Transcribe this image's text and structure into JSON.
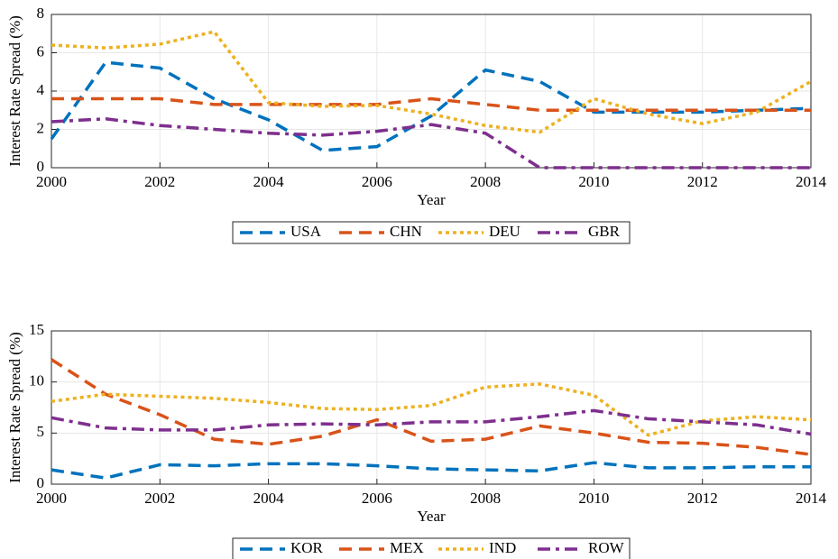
{
  "chart_data": [
    {
      "type": "line",
      "xlabel": "Year",
      "ylabel": "Interest Rate Spread (%)",
      "x": [
        2000,
        2001,
        2002,
        2003,
        2004,
        2005,
        2006,
        2007,
        2008,
        2009,
        2010,
        2011,
        2012,
        2013,
        2014
      ],
      "xlim": [
        2000,
        2014
      ],
      "xticks": [
        2000,
        2002,
        2004,
        2006,
        2008,
        2010,
        2012,
        2014
      ],
      "ylim": [
        0,
        8
      ],
      "yticks": [
        0,
        2,
        4,
        6,
        8
      ],
      "grid": true,
      "legend": "bottom",
      "series": [
        {
          "name": "USA",
          "color": "#0072BD",
          "style": "dashed",
          "values": [
            1.5,
            5.5,
            5.2,
            3.6,
            2.5,
            0.9,
            1.1,
            2.7,
            5.1,
            4.5,
            2.9,
            2.9,
            2.9,
            3.0,
            3.1
          ]
        },
        {
          "name": "CHN",
          "color": "#D95319",
          "style": "dashed",
          "values": [
            3.6,
            3.6,
            3.6,
            3.3,
            3.3,
            3.3,
            3.3,
            3.6,
            3.3,
            3.0,
            3.0,
            3.0,
            3.0,
            3.0,
            3.0
          ]
        },
        {
          "name": "DEU",
          "color": "#EDB120",
          "style": "dotted",
          "values": [
            6.4,
            6.25,
            6.45,
            7.1,
            3.4,
            3.2,
            3.25,
            2.8,
            2.2,
            1.85,
            3.6,
            2.8,
            2.3,
            2.9,
            4.5
          ]
        },
        {
          "name": "GBR",
          "color": "#7E2F8E",
          "style": "dashdot",
          "values": [
            2.4,
            2.55,
            2.2,
            2.0,
            1.8,
            1.7,
            1.9,
            2.25,
            1.8,
            0,
            0,
            0,
            0,
            0,
            0
          ]
        }
      ]
    },
    {
      "type": "line",
      "xlabel": "Year",
      "ylabel": "Interest Rate Spread (%)",
      "x": [
        2000,
        2001,
        2002,
        2003,
        2004,
        2005,
        2006,
        2007,
        2008,
        2009,
        2010,
        2011,
        2012,
        2013,
        2014
      ],
      "xlim": [
        2000,
        2014
      ],
      "xticks": [
        2000,
        2002,
        2004,
        2006,
        2008,
        2010,
        2012,
        2014
      ],
      "ylim": [
        0,
        15
      ],
      "yticks": [
        0,
        5,
        10,
        15
      ],
      "grid": true,
      "legend": "bottom",
      "series": [
        {
          "name": "KOR",
          "color": "#0072BD",
          "style": "dashed",
          "values": [
            1.4,
            0.6,
            1.9,
            1.8,
            2.0,
            2.0,
            1.8,
            1.5,
            1.4,
            1.3,
            2.1,
            1.6,
            1.6,
            1.7,
            1.7
          ]
        },
        {
          "name": "MEX",
          "color": "#D95319",
          "style": "dashed",
          "values": [
            12.2,
            8.8,
            6.8,
            4.4,
            3.9,
            4.7,
            6.3,
            4.2,
            4.4,
            5.7,
            5.0,
            4.1,
            4.0,
            3.6,
            2.9
          ]
        },
        {
          "name": "IND",
          "color": "#EDB120",
          "style": "dotted",
          "values": [
            8.1,
            8.8,
            8.6,
            8.4,
            8.0,
            7.4,
            7.3,
            7.7,
            9.5,
            9.8,
            8.7,
            4.8,
            6.2,
            6.6,
            6.3
          ]
        },
        {
          "name": "ROW",
          "color": "#7E2F8E",
          "style": "dashdot",
          "values": [
            6.5,
            5.5,
            5.3,
            5.3,
            5.8,
            5.9,
            5.8,
            6.1,
            6.1,
            6.6,
            7.2,
            6.4,
            6.1,
            5.8,
            4.9
          ]
        }
      ]
    }
  ]
}
